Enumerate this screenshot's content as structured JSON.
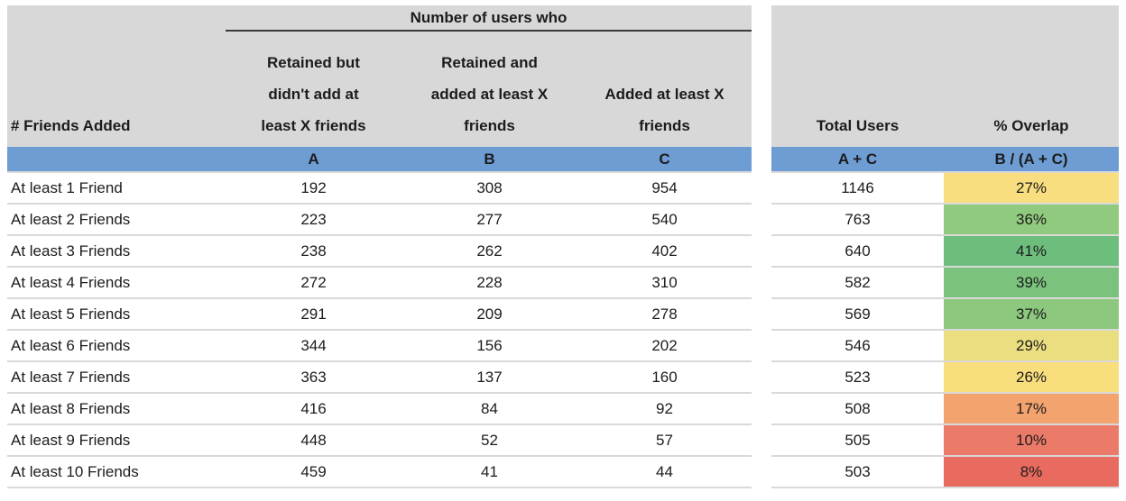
{
  "header": {
    "spanner": "Number of users who",
    "friends_col": "# Friends Added",
    "col_a_lines": [
      "Retained but",
      "didn't add at",
      "least X friends"
    ],
    "col_b_lines": [
      "Retained and",
      "added at least X",
      "friends"
    ],
    "col_c_lines": [
      "Added at least X",
      "friends"
    ],
    "total_col": "Total Users",
    "overlap_col": "% Overlap"
  },
  "formula_row": {
    "a": "A",
    "b": "B",
    "c": "C",
    "total": "A + C",
    "overlap": "B / (A + C)"
  },
  "rows": [
    {
      "label": "At least 1 Friend",
      "a": "192",
      "b": "308",
      "c": "954",
      "total": "1146",
      "overlap": "27%",
      "color": "#F8DE7E"
    },
    {
      "label": "At least 2 Friends",
      "a": "223",
      "b": "277",
      "c": "540",
      "total": "763",
      "overlap": "36%",
      "color": "#90CA7E"
    },
    {
      "label": "At least 3 Friends",
      "a": "238",
      "b": "262",
      "c": "402",
      "total": "640",
      "overlap": "41%",
      "color": "#6DBE7D"
    },
    {
      "label": "At least 4 Friends",
      "a": "272",
      "b": "228",
      "c": "310",
      "total": "582",
      "overlap": "39%",
      "color": "#7BC37D"
    },
    {
      "label": "At least 5 Friends",
      "a": "291",
      "b": "209",
      "c": "278",
      "total": "569",
      "overlap": "37%",
      "color": "#8CC87E"
    },
    {
      "label": "At least 6 Friends",
      "a": "344",
      "b": "156",
      "c": "202",
      "total": "546",
      "overlap": "29%",
      "color": "#EADE80"
    },
    {
      "label": "At least 7 Friends",
      "a": "363",
      "b": "137",
      "c": "160",
      "total": "523",
      "overlap": "26%",
      "color": "#F8DE7D"
    },
    {
      "label": "At least 8 Friends",
      "a": "416",
      "b": "84",
      "c": "92",
      "total": "508",
      "overlap": "17%",
      "color": "#F2A36E"
    },
    {
      "label": "At least 9 Friends",
      "a": "448",
      "b": "52",
      "c": "57",
      "total": "505",
      "overlap": "10%",
      "color": "#EB7A68"
    },
    {
      "label": "At least 10 Friends",
      "a": "459",
      "b": "41",
      "c": "44",
      "total": "503",
      "overlap": "8%",
      "color": "#E96B5F"
    }
  ],
  "colors": {
    "header_bg": "#D8D8D8",
    "band_bg": "#6E9DD3",
    "row_border": "#D9D9D9",
    "spanner_underline": "#3A3A3A",
    "scale_min_red": "#E96B5F",
    "scale_mid_yellow": "#F8DE7E",
    "scale_max_green": "#6DBE7D"
  },
  "chart_data": {
    "type": "table",
    "title": "Number of users who",
    "columns": [
      "# Friends Added",
      "Retained but didn't add at least X friends (A)",
      "Retained and added at least X friends (B)",
      "Added at least X friends (C)",
      "Total Users (A + C)",
      "% Overlap (B / (A + C))"
    ],
    "rows": [
      [
        "At least 1 Friend",
        192,
        308,
        954,
        1146,
        "27%"
      ],
      [
        "At least 2 Friends",
        223,
        277,
        540,
        763,
        "36%"
      ],
      [
        "At least 3 Friends",
        238,
        262,
        402,
        640,
        "41%"
      ],
      [
        "At least 4 Friends",
        272,
        228,
        310,
        582,
        "39%"
      ],
      [
        "At least 5 Friends",
        291,
        209,
        278,
        569,
        "37%"
      ],
      [
        "At least 6 Friends",
        344,
        156,
        202,
        546,
        "29%"
      ],
      [
        "At least 7 Friends",
        363,
        137,
        160,
        523,
        "26%"
      ],
      [
        "At least 8 Friends",
        416,
        84,
        92,
        508,
        "17%"
      ],
      [
        "At least 9 Friends",
        448,
        52,
        57,
        505,
        "10%"
      ],
      [
        "At least 10 Friends",
        459,
        41,
        44,
        503,
        "8%"
      ]
    ],
    "notes": "Conditional-format color scale on % Overlap: low=red, mid=yellow, high=green"
  }
}
